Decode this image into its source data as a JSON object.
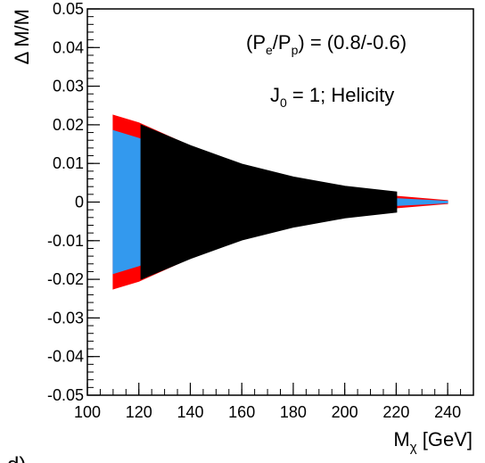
{
  "chart_data": {
    "type": "area",
    "xlabel": {
      "main": "M",
      "sub": "χ",
      "unit": "[GeV]"
    },
    "ylabel": "Δ M/M",
    "xlim": [
      100,
      250
    ],
    "ylim": [
      -0.05,
      0.05
    ],
    "xticks": [
      "100",
      "120",
      "140",
      "160",
      "180",
      "200",
      "220",
      "240"
    ],
    "xtick_values": [
      100,
      120,
      140,
      160,
      180,
      200,
      220,
      240
    ],
    "yticks": [
      "0.05",
      "0.04",
      "0.03",
      "0.02",
      "0.01",
      "0",
      "-0.01",
      "-0.02",
      "-0.03",
      "-0.04",
      "-0.05"
    ],
    "ytick_values": [
      0.05,
      0.04,
      0.03,
      0.02,
      0.01,
      0,
      -0.01,
      -0.02,
      -0.03,
      -0.04,
      -0.05
    ],
    "annotations": {
      "polarization": {
        "open": "(P",
        "sub1": "e",
        "mid": "/P",
        "sub2": "p",
        "close": ") = (0.8/-0.6)"
      },
      "model": {
        "j": "J",
        "jsub": "0",
        "rest": " = 1; Helicity"
      }
    },
    "panel_label": "d)",
    "series": [
      {
        "color": "#ff0000",
        "x": [
          110,
          120,
          140,
          160,
          180,
          200,
          220,
          240
        ],
        "upper": [
          0.0225,
          0.0205,
          0.0145,
          0.0095,
          0.006,
          0.0035,
          0.0015,
          0.0004
        ],
        "lower": [
          -0.0225,
          -0.0205,
          -0.0145,
          -0.0095,
          -0.006,
          -0.0035,
          -0.0015,
          -0.0004
        ]
      },
      {
        "color": "#3399ee",
        "x": [
          110,
          120,
          140,
          160,
          180,
          200,
          220,
          240
        ],
        "upper": [
          0.0185,
          0.0165,
          0.0115,
          0.0075,
          0.0045,
          0.0022,
          0.0009,
          0.0002
        ],
        "lower": [
          -0.0185,
          -0.0165,
          -0.0115,
          -0.0075,
          -0.0045,
          -0.0022,
          -0.0009,
          -0.0002
        ]
      },
      {
        "color": "#000000",
        "x": [
          121,
          140,
          160,
          180,
          200,
          220
        ],
        "upper": [
          0.0198,
          0.0145,
          0.0097,
          0.0064,
          0.004,
          0.0025
        ],
        "lower": [
          -0.0198,
          -0.0145,
          -0.0097,
          -0.0064,
          -0.004,
          -0.0025
        ]
      }
    ],
    "grid": false,
    "legend": "none"
  }
}
